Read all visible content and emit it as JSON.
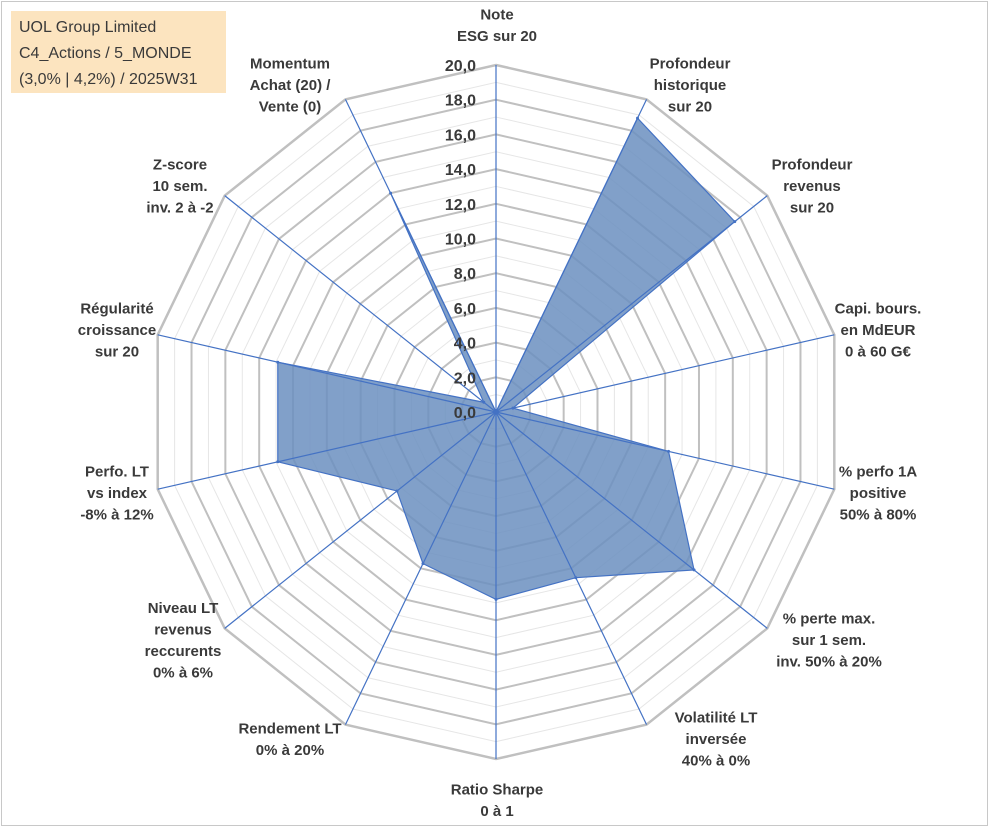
{
  "info_box": {
    "line1": "UOL Group Limited",
    "line2": "C4_Actions / 5_MONDE",
    "line3": "(3,0% | 4,2%) / 2025W31"
  },
  "chart_data": {
    "type": "radar",
    "categories": [
      [
        "Note",
        "ESG sur 20"
      ],
      [
        "Profondeur",
        "historique",
        "sur 20"
      ],
      [
        "Profondeur",
        "revenus",
        "sur 20"
      ],
      [
        "Capi. bours.",
        "en MdEUR",
        "0 à 60 G€"
      ],
      [
        "% perfo 1A",
        "positive",
        "50% à 80%"
      ],
      [
        "% perte max.",
        "sur 1 sem.",
        "inv. 50% à 20%"
      ],
      [
        "Volatilité LT",
        "inversée",
        "40% à 0%"
      ],
      [
        "Ratio Sharpe",
        "0 à 1"
      ],
      [
        "Rendement LT",
        "0% à 20%"
      ],
      [
        "Niveau LT",
        "revenus",
        "reccurents",
        "0% à 6%"
      ],
      [
        "Perfo. LT",
        "vs index",
        "-8% à 12%"
      ],
      [
        "Régularité",
        "croissance",
        "sur 20"
      ],
      [
        "Z-score",
        "10 sem.",
        "inv. 2 à -2"
      ],
      [
        "Momentum",
        "Achat (20) /",
        "Vente (0)"
      ]
    ],
    "values": [
      0.0,
      18.8,
      17.6,
      1.0,
      10.2,
      14.6,
      10.6,
      10.8,
      9.7,
      7.3,
      12.9,
      12.9,
      0.9,
      14.0
    ],
    "rlim": [
      0,
      20
    ],
    "ticks": [
      "0,0",
      "2,0",
      "4,0",
      "6,0",
      "8,0",
      "10,0",
      "12,0",
      "14,0",
      "16,0",
      "18,0",
      "20,0"
    ],
    "fill_color": "#6b8fbf",
    "line_color": "#4472c4",
    "grid_color": "#c0c0c0",
    "minor_grid_color": "#e6e6e6",
    "grid": true
  }
}
